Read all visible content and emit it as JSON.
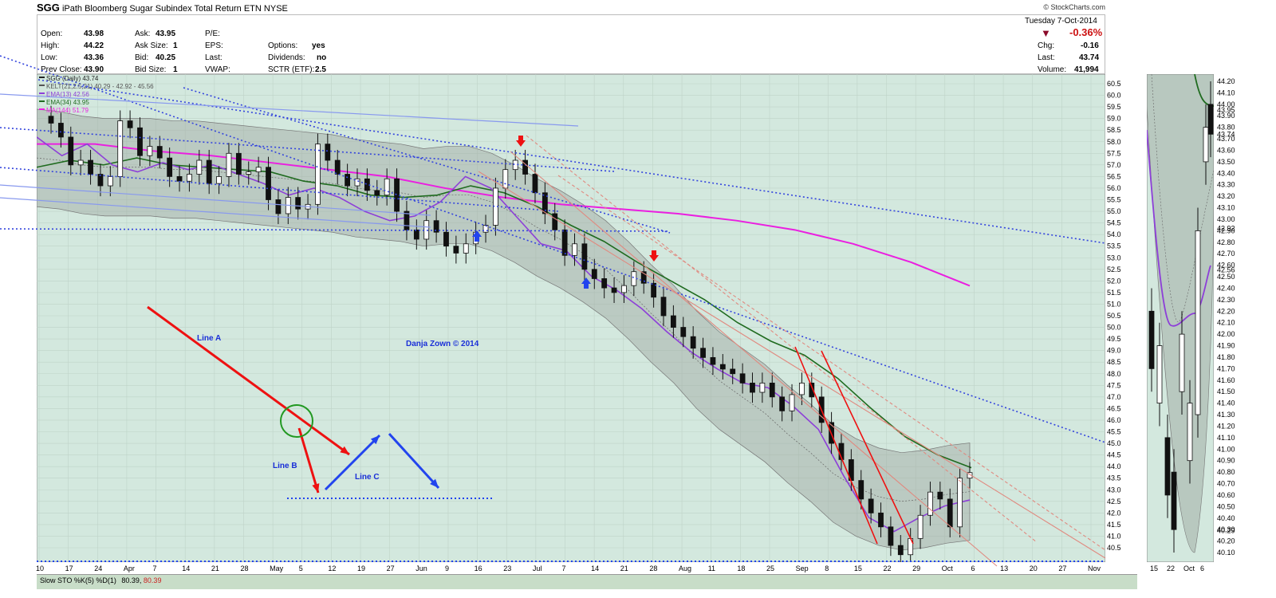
{
  "header": {
    "symbol": "SGG",
    "name": "iPath Bloomberg Sugar Subindex Total Return ETN",
    "exchange": "NYSE",
    "copyright": "© StockCharts.com",
    "date": "Tuesday  7-Oct-2014",
    "change_pct": "-0.36%"
  },
  "quote": {
    "open_label": "Open:",
    "open": "43.98",
    "high_label": "High:",
    "high": "44.22",
    "low_label": "Low:",
    "low": "43.36",
    "prev_label": "Prev Close:",
    "prev": "43.90",
    "ask_label": "Ask:",
    "ask": "43.95",
    "asksize_label": "Ask Size:",
    "asksize": "1",
    "bid_label": "Bid:",
    "bid": "40.25",
    "bidsize_label": "Bid Size:",
    "bidsize": "1",
    "pe_label": "P/E:",
    "eps_label": "EPS:",
    "last_label": "Last:",
    "vwap_label": "VWAP:",
    "options_label": "Options:",
    "options": "yes",
    "div_label": "Dividends:",
    "div": "no",
    "sctr_label": "SCTR (ETF):",
    "sctr": "2.5",
    "chg_label": "Chg:",
    "chg": "-0.16",
    "last2_label": "Last:",
    "last2": "43.74",
    "vol_label": "Volume:",
    "vol": "41,994"
  },
  "legend": {
    "main": "SGG (Daily) 43.74",
    "kelt": "KELT(21,2.5,21) 40.29 - 42.92 - 45.56",
    "ema13": "EMA(13) 42.56",
    "ema34": "EMA(34) 43.95",
    "ma144": "MA(144) 51.79"
  },
  "annotations": {
    "line_a": "Line A",
    "line_b": "Line B",
    "line_c": "Line C",
    "author": "Danja Zown © 2014"
  },
  "indicator": {
    "label": "Slow STO %K(5) %D(1)",
    "k": "80.39",
    "d": "80.39"
  },
  "colors": {
    "bg": "#d3e8de",
    "band": "#9ea79f",
    "ema13": "#8d3fd8",
    "ema34": "#1f6b1f",
    "ma144": "#ea1fe0",
    "trend": "#3344dd",
    "channel": "#e08a80",
    "red": "#ee1111",
    "green_circle": "#229922",
    "blue_arrow": "#2244ee"
  },
  "chart_data": [
    {
      "type": "candlestick",
      "title": "SGG (Daily) 43.74",
      "price_axis_labels": [
        "60.5",
        "60.0",
        "59.5",
        "59.0",
        "58.5",
        "58.0",
        "57.5",
        "57.0",
        "56.5",
        "56.0",
        "55.5",
        "55.0",
        "54.5",
        "54.0",
        "53.5",
        "53.0",
        "52.5",
        "52.0",
        "51.5",
        "51.0",
        "50.5",
        "50.0",
        "49.5",
        "49.0",
        "48.5",
        "48.0",
        "47.5",
        "47.0",
        "46.5",
        "46.0",
        "45.5",
        "45.0",
        "44.5",
        "44.0",
        "43.5",
        "43.0",
        "42.5",
        "42.0",
        "41.5",
        "41.0",
        "40.5"
      ],
      "date_axis_labels": [
        "10",
        "17",
        "24",
        "Apr",
        "7",
        "14",
        "21",
        "28",
        "May",
        "5",
        "12",
        "19",
        "27",
        "Jun",
        "9",
        "16",
        "23",
        "Jul",
        "7",
        "14",
        "21",
        "28",
        "Aug",
        "11",
        "18",
        "25",
        "Sep",
        "8",
        "15",
        "22",
        "29",
        "Oct",
        "6",
        "13",
        "20",
        "27",
        "Nov"
      ],
      "series": [
        {
          "name": "SGG (Daily) 43.74",
          "values": [
            58.8,
            58.2,
            57.0,
            57.2,
            56.6,
            56.1,
            56.5,
            58.9,
            58.6,
            57.4,
            57.8,
            57.3,
            56.5,
            56.3,
            56.6,
            57.2,
            56.2,
            56.5,
            57.5,
            56.6,
            56.7,
            56.9,
            55.5,
            54.9,
            55.6,
            55.1,
            55.3,
            57.9,
            57.2,
            56.6,
            56.1,
            56.4,
            55.9,
            55.7,
            56.4,
            55.0,
            54.2,
            53.8,
            54.6,
            54.1,
            53.5,
            53.2,
            53.6,
            54.1,
            54.4,
            56.0,
            56.8,
            57.2,
            56.6,
            55.8,
            54.9,
            54.2,
            53.1,
            53.6,
            52.5,
            52.1,
            51.7,
            51.5,
            51.8,
            52.4,
            51.9,
            51.3,
            50.5,
            50.0,
            49.6,
            49.1,
            48.7,
            48.4,
            48.2,
            48.0,
            47.6,
            47.2,
            47.6,
            47.0,
            46.4,
            47.1,
            47.6,
            47.0,
            45.9,
            45.0,
            44.3,
            43.4,
            42.6,
            42.0,
            41.4,
            40.6,
            40.2,
            40.9,
            41.9,
            42.9,
            42.6,
            41.4,
            43.5,
            43.74
          ]
        },
        {
          "name": "KELT(21,2.5,21) 40.29 - 42.92 - 45.56",
          "values": [
            57.3,
            57.2,
            57.0,
            56.9,
            56.9,
            56.9,
            56.8,
            56.8,
            56.7,
            56.6,
            56.5,
            56.4,
            56.3,
            56.2,
            56.0,
            55.9,
            55.8,
            55.6,
            55.7,
            55.7,
            55.4,
            54.9,
            54.3,
            53.8,
            53.2,
            52.5,
            51.6,
            50.6,
            49.7,
            48.6,
            47.7,
            47.0,
            46.3,
            45.4,
            44.6,
            43.7,
            43.1,
            42.7,
            42.5,
            42.6,
            42.8,
            42.92
          ]
        },
        {
          "name": "EMA(13) 42.56",
          "values": [
            58.2,
            57.4,
            57.9,
            57.0,
            56.7,
            57.1,
            56.8,
            57.0,
            56.6,
            56.2,
            55.7,
            56.0,
            55.6,
            55.0,
            54.6,
            54.8,
            55.4,
            56.5,
            56.0,
            54.8,
            53.6,
            53.3,
            52.2,
            51.6,
            50.8,
            49.8,
            48.9,
            48.2,
            47.6,
            47.4,
            46.6,
            45.6,
            43.6,
            41.8,
            41.2,
            41.8,
            42.3,
            42.56
          ]
        },
        {
          "name": "EMA(34) 43.95",
          "values": [
            56.9,
            57.2,
            57.0,
            57.3,
            57.0,
            56.9,
            56.8,
            56.7,
            56.3,
            56.1,
            55.7,
            55.6,
            55.7,
            56.1,
            55.8,
            55.2,
            54.4,
            53.7,
            52.8,
            52.0,
            51.2,
            50.2,
            49.4,
            48.8,
            47.8,
            46.5,
            45.3,
            44.5,
            43.95
          ]
        },
        {
          "name": "MA(144) 51.79",
          "values": [
            57.9,
            57.9,
            57.6,
            57.4,
            57.1,
            56.8,
            56.5,
            56.0,
            55.6,
            55.3,
            55.1,
            54.9,
            54.6,
            54.2,
            53.6,
            52.8,
            51.79
          ]
        }
      ]
    },
    {
      "type": "candlestick",
      "price_axis_labels": [
        "44.20",
        "44.10",
        "44.00",
        "43.95",
        "43.90",
        "43.80",
        "43.74",
        "43.70",
        "43.60",
        "43.50",
        "43.40",
        "43.30",
        "43.20",
        "43.10",
        "43.00",
        "42.92",
        "42.90",
        "42.80",
        "42.70",
        "42.60",
        "42.56",
        "42.50",
        "42.40",
        "42.30",
        "42.20",
        "42.10",
        "42.00",
        "41.90",
        "41.80",
        "41.70",
        "41.60",
        "41.50",
        "41.40",
        "41.30",
        "41.20",
        "41.10",
        "41.00",
        "40.90",
        "40.80",
        "40.70",
        "40.60",
        "40.50",
        "40.40",
        "40.30",
        "40.29",
        "40.20",
        "40.10"
      ],
      "date_axis_labels": [
        "15",
        "22",
        "Oct",
        "6"
      ]
    }
  ]
}
